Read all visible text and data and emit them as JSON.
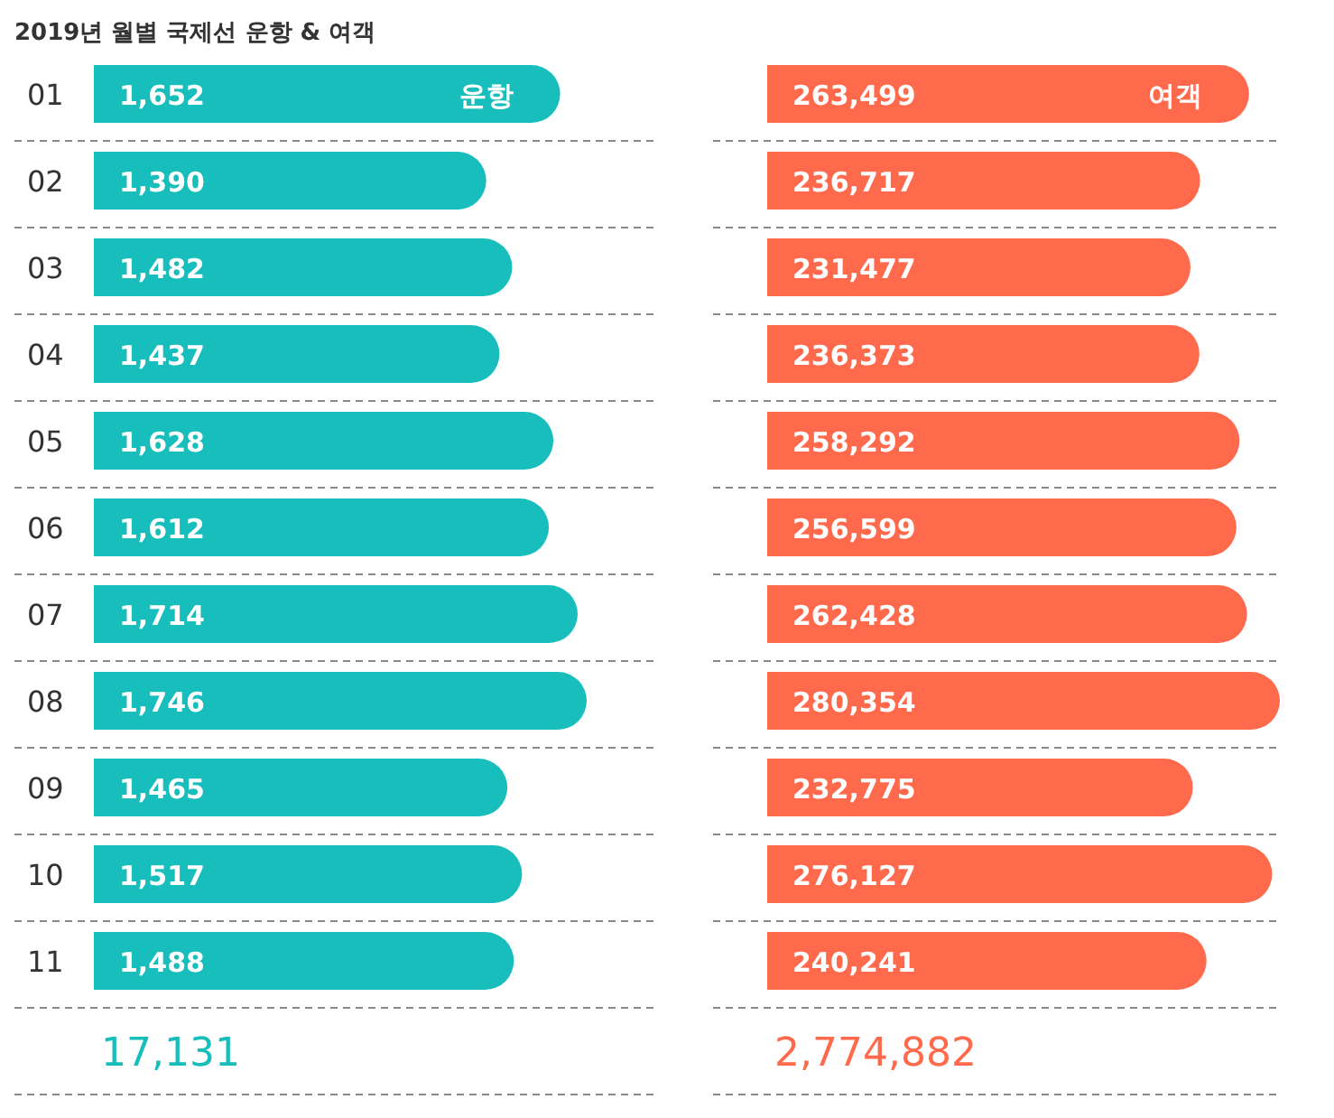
{
  "chart_data": [
    {
      "type": "bar",
      "orientation": "horizontal",
      "title": "2019년 월별 국제선 운항 & 여객",
      "categories": [
        "01",
        "02",
        "03",
        "04",
        "05",
        "06",
        "07",
        "08",
        "09",
        "10",
        "11"
      ],
      "series": [
        {
          "name": "운항",
          "color": "#17bebb",
          "values": [
            1652,
            1390,
            1482,
            1437,
            1628,
            1612,
            1714,
            1746,
            1465,
            1517,
            1488
          ],
          "value_labels": [
            "1,652",
            "1,390",
            "1,482",
            "1,437",
            "1,628",
            "1,612",
            "1,714",
            "1,746",
            "1,465",
            "1,517",
            "1,488"
          ]
        }
      ],
      "grid": true,
      "annotations": [
        "17,131"
      ]
    },
    {
      "type": "bar",
      "orientation": "horizontal",
      "categories": [
        "01",
        "02",
        "03",
        "04",
        "05",
        "06",
        "07",
        "08",
        "09",
        "10",
        "11"
      ],
      "tick_labels": false,
      "series": [
        {
          "name": "여객",
          "color": "#ff6a4d",
          "values": [
            263499,
            236717,
            231477,
            236373,
            258292,
            256599,
            262428,
            280354,
            232775,
            276127,
            240241
          ],
          "value_labels": [
            "263,499",
            "236,717",
            "231,477",
            "236,373",
            "258,292",
            "256,599",
            "262,428",
            "280,354",
            "232,775",
            "276,127",
            "240,241"
          ]
        }
      ],
      "grid": true,
      "annotations": [
        "2,774,882"
      ]
    }
  ]
}
